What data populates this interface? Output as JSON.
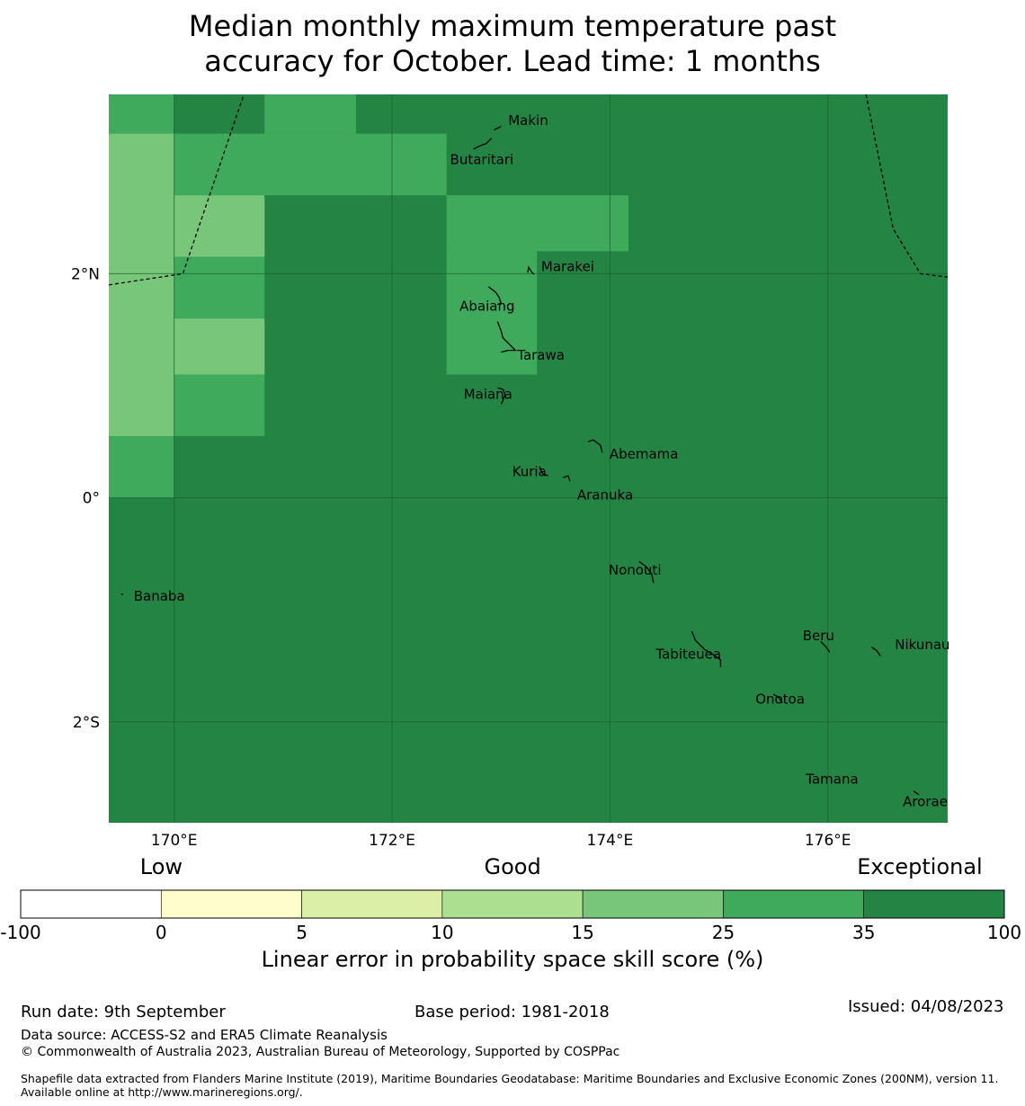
{
  "title": {
    "line1": "Median monthly maximum temperature past",
    "line2": "accuracy for October. Lead time: 1 months"
  },
  "map": {
    "lon_range": [
      169.4,
      177.1
    ],
    "lat_range": [
      -2.9,
      3.6
    ],
    "x_ticks": [
      {
        "value": 170,
        "label": "170°E"
      },
      {
        "value": 172,
        "label": "172°E"
      },
      {
        "value": 174,
        "label": "174°E"
      },
      {
        "value": 176,
        "label": "176°E"
      }
    ],
    "y_ticks": [
      {
        "value": 2,
        "label": "2°N"
      },
      {
        "value": 0,
        "label": "0°"
      },
      {
        "value": -2,
        "label": "2°S"
      }
    ],
    "grid": true,
    "background_category": "35 to 100",
    "cells": [
      {
        "lon": [
          169.4,
          170.0
        ],
        "lat": [
          3.25,
          3.6
        ],
        "category": "25 to 35"
      },
      {
        "lon": [
          170.0,
          170.83
        ],
        "lat": [
          3.25,
          3.6
        ],
        "category": "35 to 100"
      },
      {
        "lon": [
          170.83,
          171.67
        ],
        "lat": [
          3.25,
          3.6
        ],
        "category": "25 to 35"
      },
      {
        "lon": [
          169.4,
          170.0
        ],
        "lat": [
          0.55,
          3.25
        ],
        "category": "15 to 25"
      },
      {
        "lon": [
          169.4,
          170.0
        ],
        "lat": [
          0.0,
          0.55
        ],
        "category": "25 to 35"
      },
      {
        "lon": [
          170.0,
          172.5
        ],
        "lat": [
          2.7,
          3.25
        ],
        "category": "25 to 35"
      },
      {
        "lon": [
          170.0,
          170.83
        ],
        "lat": [
          2.15,
          2.7
        ],
        "category": "15 to 25"
      },
      {
        "lon": [
          170.0,
          170.83
        ],
        "lat": [
          1.6,
          2.15
        ],
        "category": "25 to 35"
      },
      {
        "lon": [
          170.0,
          170.83
        ],
        "lat": [
          1.1,
          1.6
        ],
        "category": "15 to 25"
      },
      {
        "lon": [
          170.0,
          170.83
        ],
        "lat": [
          0.55,
          1.1
        ],
        "category": "25 to 35"
      },
      {
        "lon": [
          172.5,
          174.17
        ],
        "lat": [
          2.2,
          2.7
        ],
        "category": "25 to 35"
      },
      {
        "lon": [
          172.5,
          173.33
        ],
        "lat": [
          1.1,
          2.2
        ],
        "category": "25 to 35"
      }
    ],
    "boundary_lines": [
      [
        [
          169.4,
          1.9
        ],
        [
          170.08,
          2.0
        ],
        [
          170.64,
          3.6
        ]
      ],
      [
        [
          176.35,
          3.6
        ],
        [
          176.6,
          2.4
        ],
        [
          176.85,
          2.0
        ],
        [
          177.1,
          1.97
        ]
      ]
    ],
    "places": [
      {
        "name": "Makin",
        "lon": 173.0,
        "lat": 3.33
      },
      {
        "name": "Butaritari",
        "lon": 172.78,
        "lat": 3.08
      },
      {
        "name": "Marakei",
        "lon": 173.27,
        "lat": 2.01
      },
      {
        "name": "Abaiang",
        "lon": 172.95,
        "lat": 1.82
      },
      {
        "name": "Tarawa",
        "lon": 173.05,
        "lat": 1.38
      },
      {
        "name": "Maiana",
        "lon": 173.02,
        "lat": 0.95
      },
      {
        "name": "Abemama",
        "lon": 173.88,
        "lat": 0.42
      },
      {
        "name": "Kuria",
        "lon": 173.4,
        "lat": 0.23
      },
      {
        "name": "Aranuka",
        "lon": 173.6,
        "lat": 0.18
      },
      {
        "name": "Banaba",
        "lon": 169.53,
        "lat": -0.88
      },
      {
        "name": "Nonouti",
        "lon": 174.4,
        "lat": -0.68
      },
      {
        "name": "Beru",
        "lon": 176.0,
        "lat": -1.33
      },
      {
        "name": "Nikunau",
        "lon": 176.45,
        "lat": -1.38
      },
      {
        "name": "Tabiteuea",
        "lon": 174.9,
        "lat": -1.4
      },
      {
        "name": "Onotoa",
        "lon": 175.55,
        "lat": -1.8
      },
      {
        "name": "Tamana",
        "lon": 175.98,
        "lat": -2.5
      },
      {
        "name": "Arorae",
        "lon": 176.82,
        "lat": -2.65
      }
    ]
  },
  "colorbar": {
    "categories": [
      {
        "label": "Low",
        "anchor_tick": 1
      },
      {
        "label": "Good",
        "anchor_tick": 3.5
      },
      {
        "label": "Exceptional",
        "anchor_tick": 6.4
      }
    ],
    "bins": [
      {
        "range": "-100 to 0",
        "color": "#ffffff"
      },
      {
        "range": "0 to 5",
        "color": "#fffdcc"
      },
      {
        "range": "5 to 10",
        "color": "#dbefa6"
      },
      {
        "range": "10 to 15",
        "color": "#acdf90"
      },
      {
        "range": "15 to 25",
        "color": "#78c679"
      },
      {
        "range": "25 to 35",
        "color": "#40aa5c"
      },
      {
        "range": "35 to 100",
        "color": "#238443"
      }
    ],
    "ticks": [
      "-100",
      "0",
      "5",
      "10",
      "15",
      "25",
      "35",
      "100"
    ],
    "caption": "Linear error in probability space skill score (%)"
  },
  "footer": {
    "run_date": "Run date: 9th September",
    "base_period": "Base period: 1981-2018",
    "issued": "Issued: 04/08/2023",
    "data_source": "Data source: ACCESS-S2 and ERA5 Climate Reanalysis",
    "copyright": "© Commonwealth of Australia 2023, Australian Bureau of Meteorology, Supported by COSPPac",
    "shapefile": "Shapefile data extracted from Flanders Marine Institute (2019), Maritime Boundaries Geodatabase: Maritime Boundaries and Exclusive Economic Zones (200NM), version 11. Available online at http://www.marineregions.org/."
  }
}
